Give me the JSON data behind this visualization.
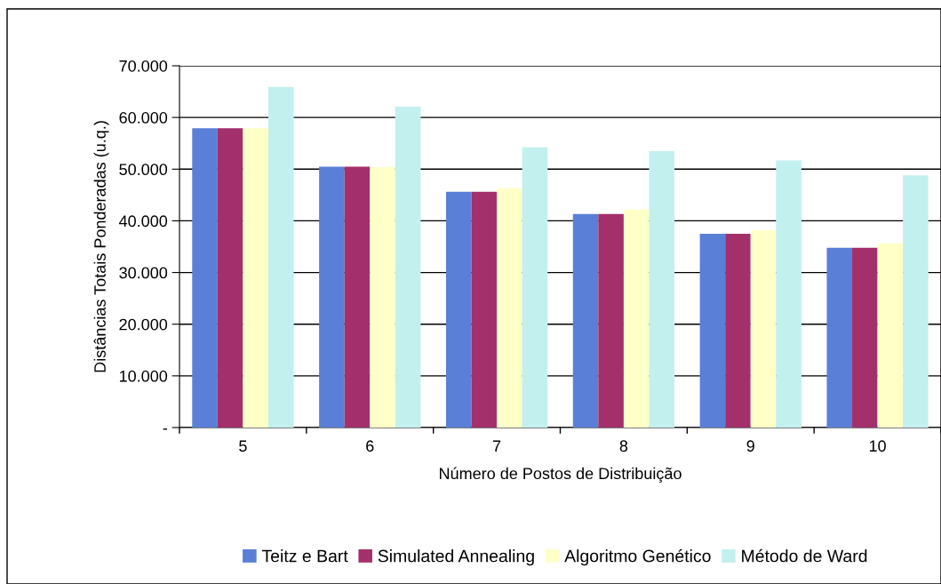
{
  "chart_data": {
    "type": "bar",
    "xlabel": "Número de Postos de Distribuição",
    "ylabel": "Distâncias Totais Ponderadas (u.q.)",
    "categories": [
      "5",
      "6",
      "7",
      "8",
      "9",
      "10"
    ],
    "series": [
      {
        "name": "Teitz e Bart",
        "color": "#5a7fd6",
        "values": [
          57900,
          50500,
          45600,
          41300,
          37500,
          34800
        ]
      },
      {
        "name": "Simulated Annealing",
        "color": "#a3306b",
        "values": [
          57900,
          50500,
          45600,
          41300,
          37500,
          34800
        ]
      },
      {
        "name": "Algoritmo Genético",
        "color": "#ffffc8",
        "values": [
          57900,
          50400,
          46300,
          42200,
          38200,
          35600
        ]
      },
      {
        "name": "Método de Ward",
        "color": "#c2f0ee",
        "values": [
          65900,
          62100,
          54200,
          53500,
          51700,
          48800
        ]
      }
    ],
    "ylim": [
      0,
      70000
    ],
    "yticks": [
      {
        "value": 0,
        "label": "-"
      },
      {
        "value": 10000,
        "label": "10.000"
      },
      {
        "value": 20000,
        "label": "20.000"
      },
      {
        "value": 30000,
        "label": "30.000"
      },
      {
        "value": 40000,
        "label": "40.000"
      },
      {
        "value": 50000,
        "label": "50.000"
      },
      {
        "value": 60000,
        "label": "60.000"
      },
      {
        "value": 70000,
        "label": "70.000"
      }
    ],
    "grid": "y",
    "legend": "bottom"
  }
}
